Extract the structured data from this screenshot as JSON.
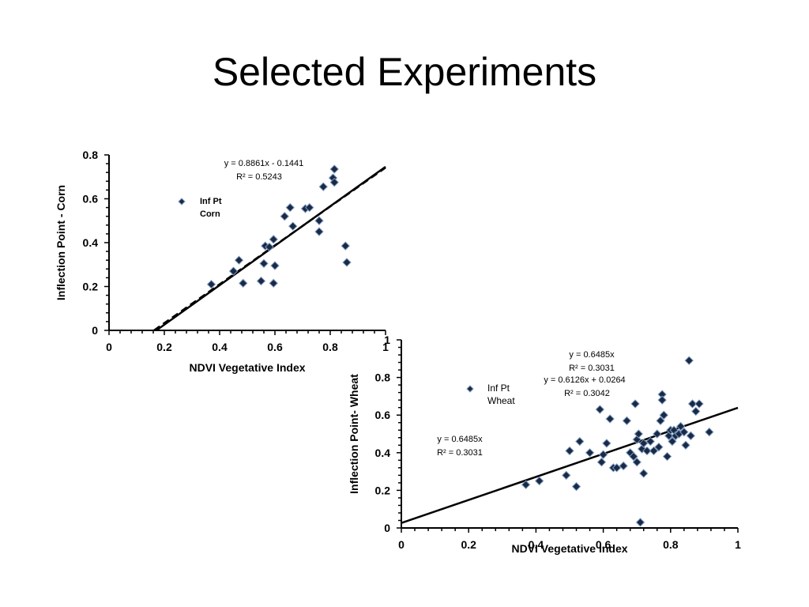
{
  "slide": {
    "title": "Selected Experiments"
  },
  "colors": {
    "marker_fill": "#1a2a44",
    "marker_stroke": "#7f9cc4",
    "line": "#000000"
  },
  "chart_data": [
    {
      "type": "scatter",
      "name": "corn",
      "ylabel": "Inflection Point - Corn",
      "xlabel": "NDVI Vegetative Index",
      "xlim": [
        0,
        1
      ],
      "ylim": [
        0,
        0.8
      ],
      "xticks": [
        "0",
        "0.2",
        "0.4",
        "0.6",
        "0.8",
        "1"
      ],
      "yticks": [
        "0",
        "0.2",
        "0.4",
        "0.6",
        "0.8"
      ],
      "legend": {
        "line1": "Inf Pt",
        "line2": "Corn"
      },
      "equations": [
        "y = 0.8861x - 0.1441",
        "R² = 0.5243"
      ],
      "fits": [
        {
          "style": "dashed",
          "slope": 0.8861,
          "intercept": -0.1441
        },
        {
          "style": "solid",
          "slope": 0.9,
          "intercept": -0.154
        }
      ],
      "points": [
        [
          0.37,
          0.21
        ],
        [
          0.45,
          0.27
        ],
        [
          0.47,
          0.32
        ],
        [
          0.485,
          0.215
        ],
        [
          0.55,
          0.225
        ],
        [
          0.56,
          0.305
        ],
        [
          0.565,
          0.385
        ],
        [
          0.58,
          0.38
        ],
        [
          0.595,
          0.215
        ],
        [
          0.595,
          0.415
        ],
        [
          0.6,
          0.295
        ],
        [
          0.635,
          0.52
        ],
        [
          0.655,
          0.56
        ],
        [
          0.665,
          0.475
        ],
        [
          0.71,
          0.555
        ],
        [
          0.725,
          0.56
        ],
        [
          0.76,
          0.45
        ],
        [
          0.76,
          0.5
        ],
        [
          0.775,
          0.655
        ],
        [
          0.81,
          0.695
        ],
        [
          0.815,
          0.735
        ],
        [
          0.815,
          0.675
        ],
        [
          0.855,
          0.385
        ],
        [
          0.86,
          0.31
        ]
      ]
    },
    {
      "type": "scatter",
      "name": "wheat",
      "ylabel": "Inflection Point- Wheat",
      "xlabel": "NDVI Vegetative Index",
      "xlim": [
        0,
        1
      ],
      "ylim": [
        0,
        1
      ],
      "xticks": [
        "0",
        "0.2",
        "0.4",
        "0.6",
        "0.8",
        "1"
      ],
      "yticks": [
        "0",
        "0.2",
        "0.4",
        "0.6",
        "0.8",
        "1"
      ],
      "legend": {
        "line1": "Inf Pt",
        "line2": "Wheat"
      },
      "equations": [
        "y = 0.6485x",
        "R² = 0.3031",
        "y = 0.6126x + 0.0264",
        "R² = 0.3042",
        "y = 0.6485x",
        "R² = 0.3031"
      ],
      "fits": [
        {
          "style": "solid",
          "slope": 0.6126,
          "intercept": 0.0264
        }
      ],
      "points": [
        [
          0.37,
          0.23
        ],
        [
          0.41,
          0.25
        ],
        [
          0.49,
          0.28
        ],
        [
          0.5,
          0.41
        ],
        [
          0.52,
          0.22
        ],
        [
          0.53,
          0.46
        ],
        [
          0.56,
          0.4
        ],
        [
          0.59,
          0.63
        ],
        [
          0.595,
          0.35
        ],
        [
          0.6,
          0.39
        ],
        [
          0.61,
          0.45
        ],
        [
          0.62,
          0.58
        ],
        [
          0.63,
          0.32
        ],
        [
          0.64,
          0.32
        ],
        [
          0.66,
          0.33
        ],
        [
          0.67,
          0.57
        ],
        [
          0.68,
          0.4
        ],
        [
          0.69,
          0.38
        ],
        [
          0.695,
          0.66
        ],
        [
          0.7,
          0.35
        ],
        [
          0.7,
          0.47
        ],
        [
          0.705,
          0.5
        ],
        [
          0.71,
          0.03
        ],
        [
          0.715,
          0.42
        ],
        [
          0.72,
          0.29
        ],
        [
          0.72,
          0.45
        ],
        [
          0.73,
          0.41
        ],
        [
          0.74,
          0.46
        ],
        [
          0.75,
          0.41
        ],
        [
          0.76,
          0.5
        ],
        [
          0.765,
          0.43
        ],
        [
          0.77,
          0.57
        ],
        [
          0.775,
          0.71
        ],
        [
          0.775,
          0.68
        ],
        [
          0.78,
          0.6
        ],
        [
          0.79,
          0.38
        ],
        [
          0.795,
          0.49
        ],
        [
          0.8,
          0.52
        ],
        [
          0.805,
          0.46
        ],
        [
          0.81,
          0.52
        ],
        [
          0.815,
          0.49
        ],
        [
          0.825,
          0.5
        ],
        [
          0.83,
          0.54
        ],
        [
          0.84,
          0.51
        ],
        [
          0.845,
          0.44
        ],
        [
          0.855,
          0.89
        ],
        [
          0.86,
          0.49
        ],
        [
          0.865,
          0.66
        ],
        [
          0.875,
          0.62
        ],
        [
          0.885,
          0.66
        ],
        [
          0.915,
          0.51
        ]
      ]
    }
  ]
}
